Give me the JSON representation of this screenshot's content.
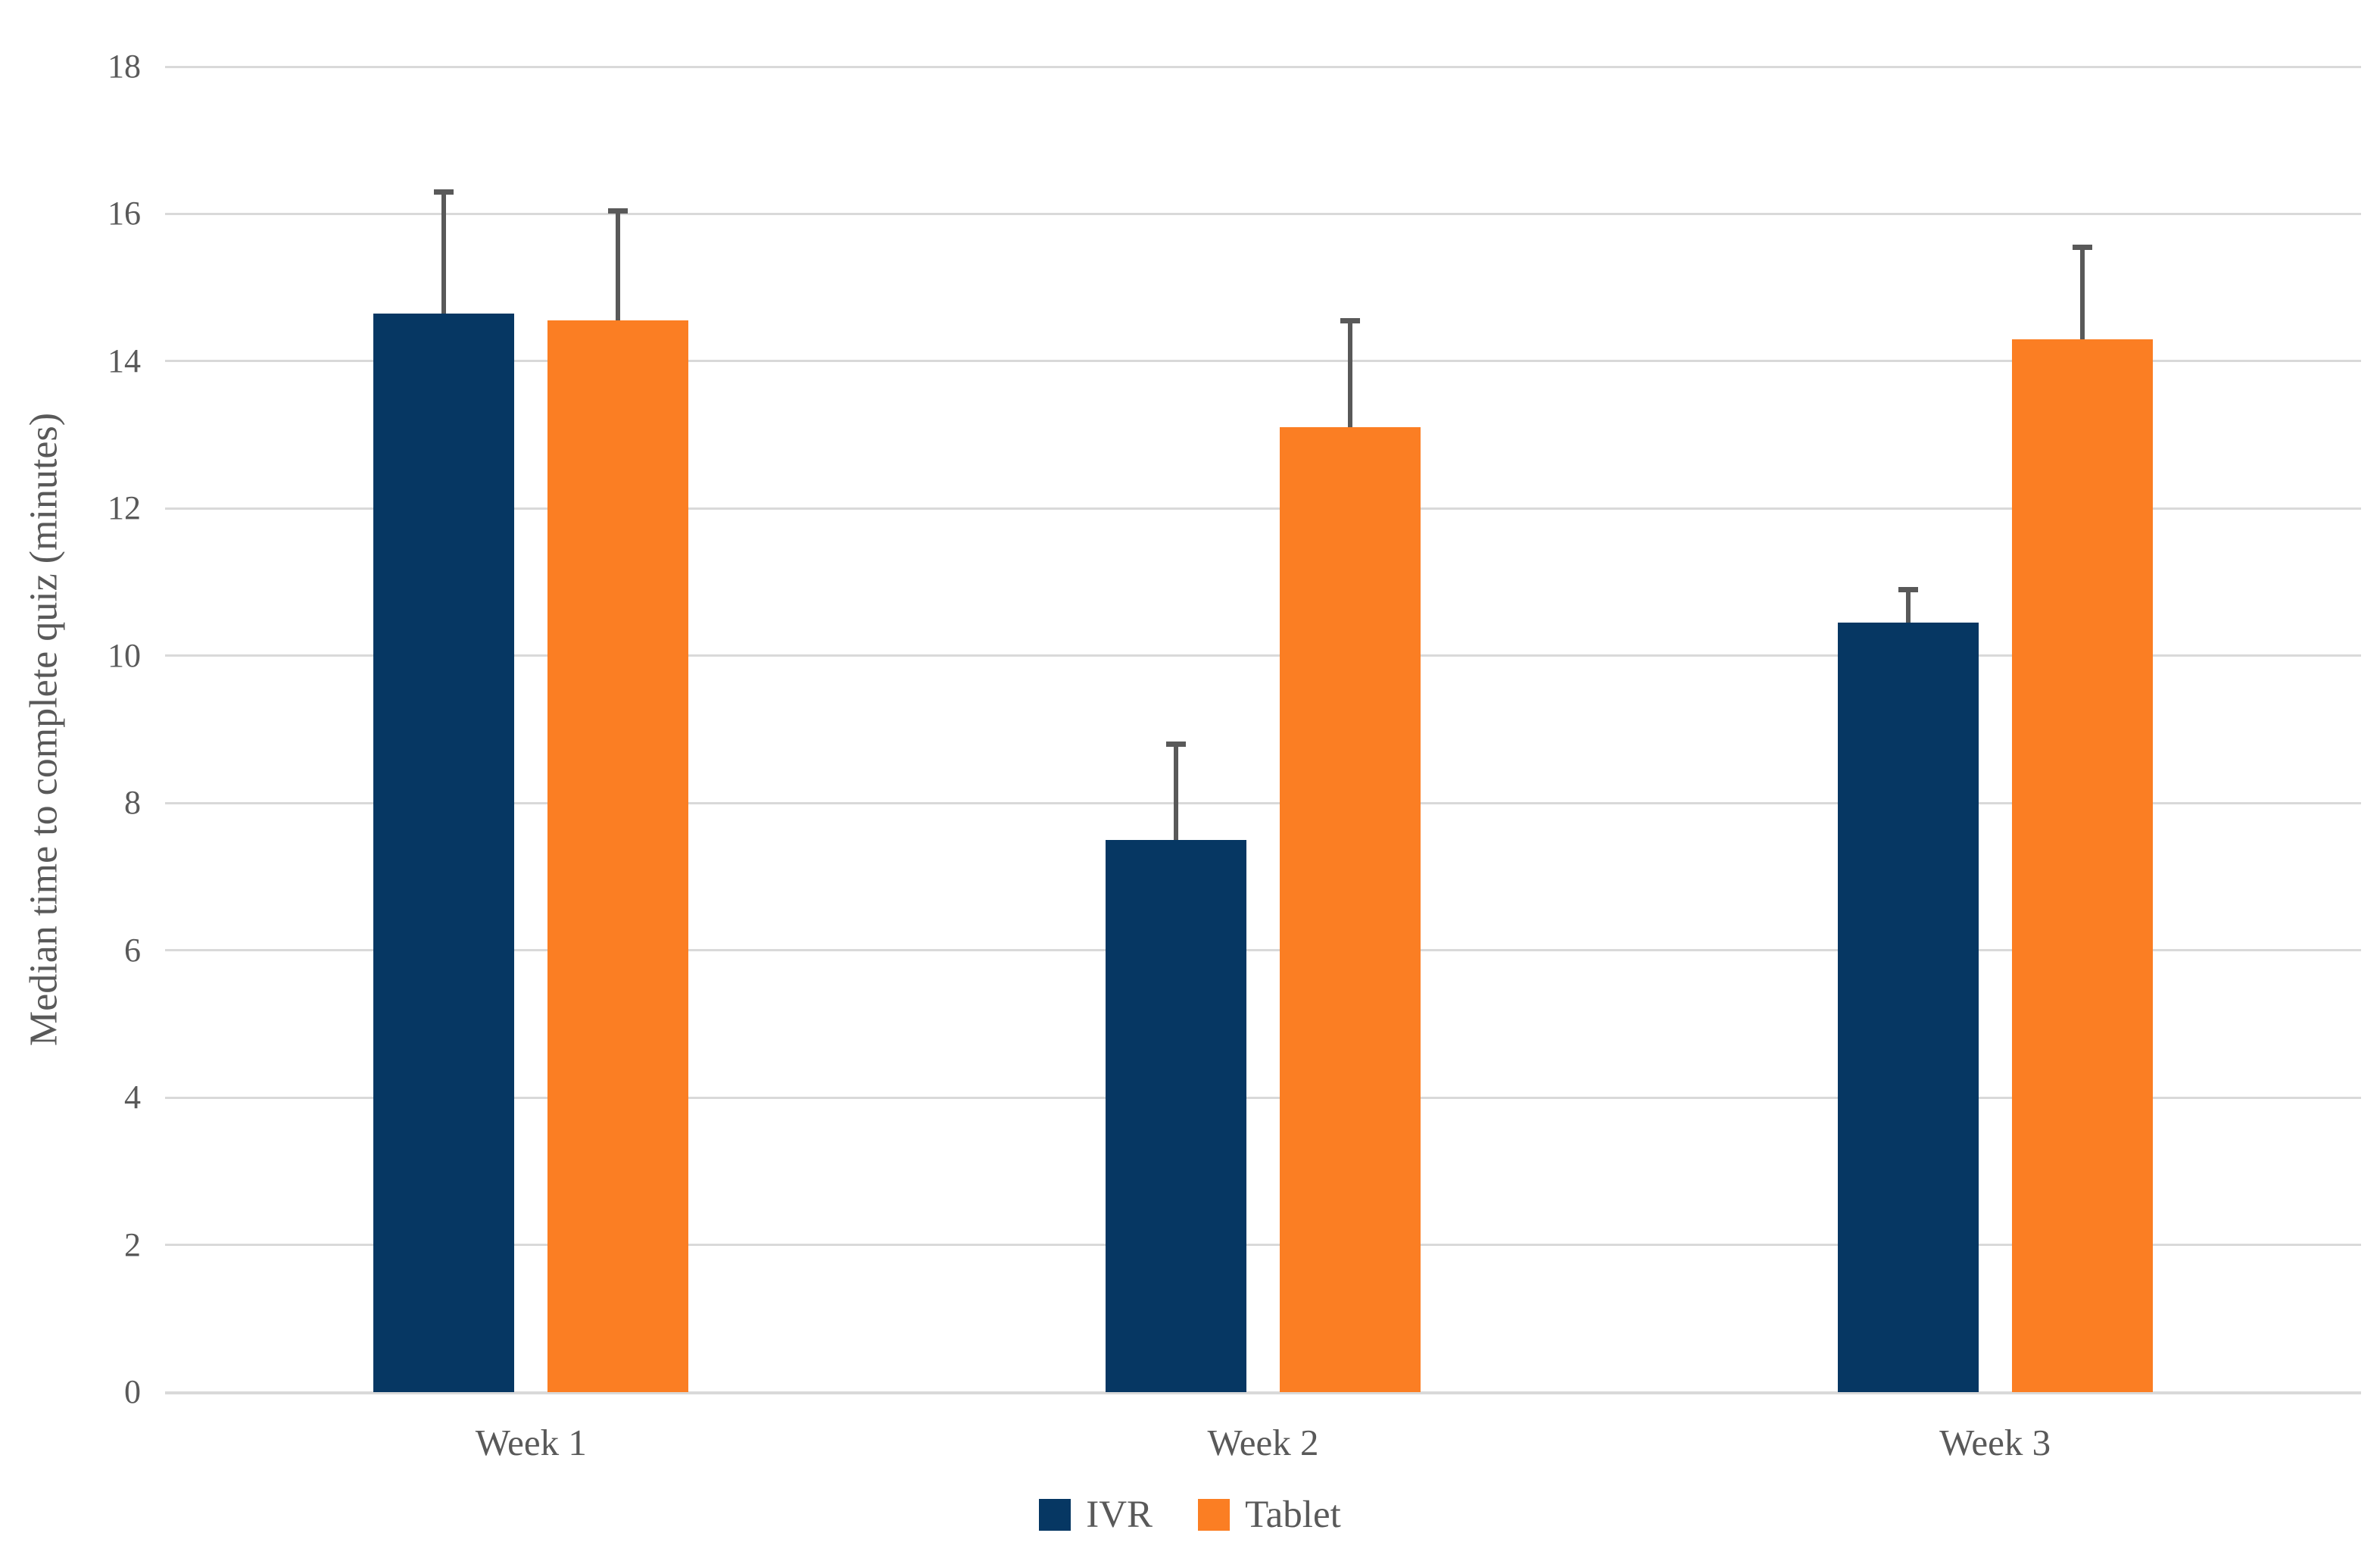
{
  "chart_data": {
    "type": "bar",
    "title": "",
    "xlabel": "",
    "ylabel": "Median time to complete quiz (minutes)",
    "categories": [
      "Week 1",
      "Week 2",
      "Week 3"
    ],
    "series": [
      {
        "name": "IVR",
        "color": "#063763",
        "values": [
          14.65,
          7.5,
          10.45
        ],
        "error_plus": [
          1.65,
          1.3,
          0.45
        ]
      },
      {
        "name": "Tablet",
        "color": "#FB7E23",
        "values": [
          14.55,
          13.1,
          14.3
        ],
        "error_plus": [
          1.5,
          1.45,
          1.25
        ]
      }
    ],
    "ylim": [
      0,
      18
    ],
    "ytick_step": 2,
    "yticks": [
      0,
      2,
      4,
      6,
      8,
      10,
      12,
      14,
      16,
      18
    ],
    "grid": true,
    "legend_position": "bottom-center",
    "colors": {
      "gridline": "#D9D9D9",
      "error_bar": "#595959",
      "text": "#595959",
      "background": "#FFFFFF"
    }
  }
}
